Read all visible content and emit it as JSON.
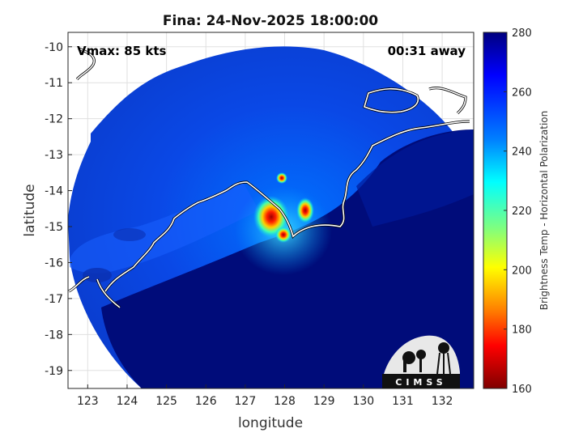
{
  "title": "Fina: 24-Nov-2025 18:00:00",
  "overlay_left": "Vmax: 85 kts",
  "overlay_right": "00:31 away",
  "xlabel": "longitude",
  "ylabel": "latitude",
  "colorbar_label": "Brightness Temp - Horizontal Polarization",
  "colorbar_ticks": [
    "280",
    "260",
    "240",
    "220",
    "200",
    "180",
    "160"
  ],
  "logo_text": "CIMSS",
  "chart_data": {
    "type": "heatmap",
    "x_ticks": [
      "123",
      "124",
      "125",
      "126",
      "127",
      "128",
      "129",
      "130",
      "131",
      "132"
    ],
    "y_ticks": [
      "-10",
      "-11",
      "-12",
      "-13",
      "-14",
      "-15",
      "-16",
      "-17",
      "-18",
      "-19"
    ],
    "xlim": [
      122.5,
      132.8
    ],
    "ylim": [
      -19.5,
      -9.6
    ],
    "clim": [
      160,
      280
    ],
    "swath_center": [
      127.9,
      -14.5
    ],
    "cold_features": [
      {
        "lon": 127.6,
        "lat": -14.7,
        "value": 185
      },
      {
        "lon": 128.0,
        "lat": -15.2,
        "value": 175
      },
      {
        "lon": 128.55,
        "lat": -14.6,
        "value": 195
      },
      {
        "lon": 128.0,
        "lat": -13.7,
        "value": 180
      }
    ],
    "grid": true,
    "colormap": "jet"
  }
}
